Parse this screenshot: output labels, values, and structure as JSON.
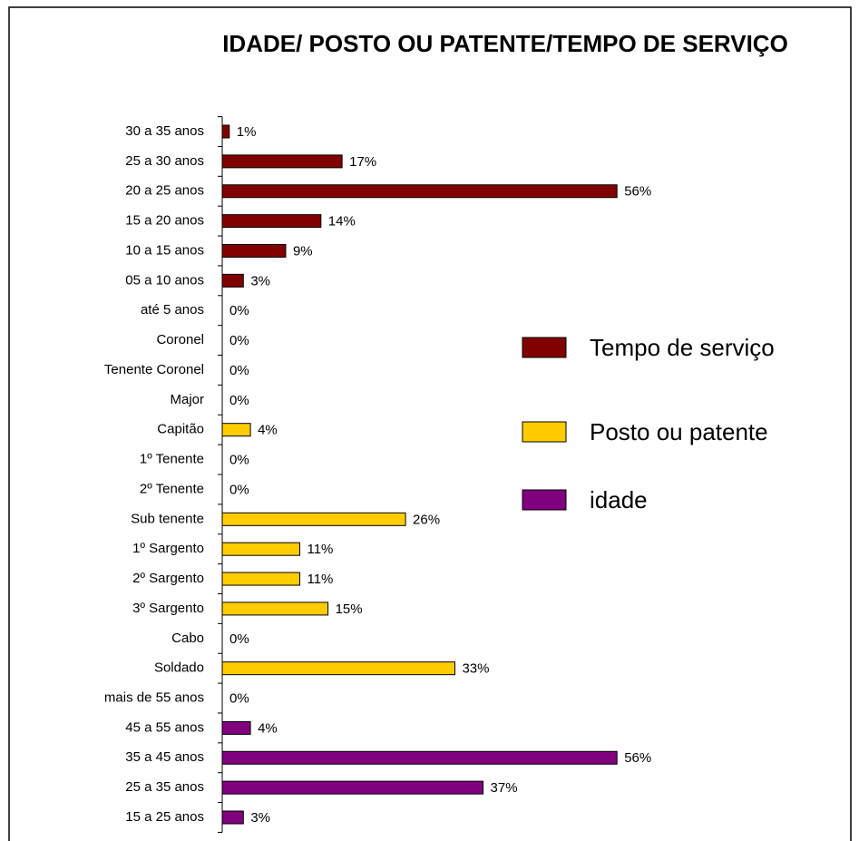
{
  "chart_data": {
    "type": "barh",
    "title": "IDADE/ POSTO OU PATENTE/TEMPO DE SERVIÇO",
    "categories": [
      "30 a 35 anos",
      "25 a 30 anos",
      "20 a 25 anos",
      "15 a 20 anos",
      "10 a 15 anos",
      "05 a 10 anos",
      "até 5 anos",
      "Coronel",
      "Tenente Coronel",
      "Major",
      "Capitão",
      "1º Tenente",
      "2º Tenente",
      "Sub tenente",
      "1º Sargento",
      "2º Sargento",
      "3º Sargento",
      "Cabo",
      "Soldado",
      "mais de 55 anos",
      "45 a 55 anos",
      "35 a 45 anos",
      "25 a 35 anos",
      "15 a 25 anos"
    ],
    "series": [
      {
        "name": "Tempo de serviço",
        "color": "#800000",
        "values": [
          1,
          17,
          56,
          14,
          9,
          3,
          0,
          null,
          null,
          null,
          null,
          null,
          null,
          null,
          null,
          null,
          null,
          null,
          null,
          null,
          null,
          null,
          null,
          null
        ],
        "value_labels": [
          "1%",
          "17%",
          "56%",
          "14%",
          "9%",
          "3%",
          "0%",
          null,
          null,
          null,
          null,
          null,
          null,
          null,
          null,
          null,
          null,
          null,
          null,
          null,
          null,
          null,
          null,
          null
        ]
      },
      {
        "name": "Posto ou patente",
        "color": "#ffcc00",
        "values": [
          null,
          null,
          null,
          null,
          null,
          null,
          null,
          0,
          0,
          0,
          4,
          0,
          0,
          26,
          11,
          11,
          15,
          0,
          33,
          null,
          null,
          null,
          null,
          null
        ],
        "value_labels": [
          null,
          null,
          null,
          null,
          null,
          null,
          null,
          "0%",
          "0%",
          "0%",
          "4%",
          "0%",
          "0%",
          "26%",
          "11%",
          "11%",
          "15%",
          "0%",
          "33%",
          null,
          null,
          null,
          null,
          null
        ]
      },
      {
        "name": "idade",
        "color": "#800080",
        "values": [
          null,
          null,
          null,
          null,
          null,
          null,
          null,
          null,
          null,
          null,
          null,
          null,
          null,
          null,
          null,
          null,
          null,
          null,
          null,
          0,
          4,
          56,
          37,
          3
        ],
        "value_labels": [
          null,
          null,
          null,
          null,
          null,
          null,
          null,
          null,
          null,
          null,
          null,
          null,
          null,
          null,
          null,
          null,
          null,
          null,
          null,
          "0%",
          "4%",
          "56%",
          "37%",
          "3%"
        ]
      }
    ],
    "xlim": [
      0,
      70
    ]
  }
}
